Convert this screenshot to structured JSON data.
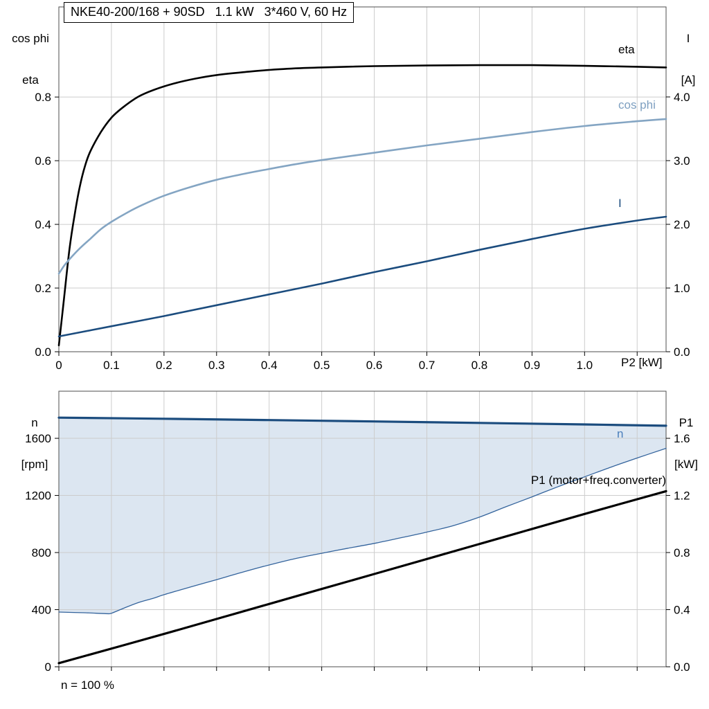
{
  "title_box": {
    "text": "NKE40-200/168 + 90SD   1.1 kW   3*460 V, 60 Hz"
  },
  "axes_text": {
    "top_left_line1": "cos phi",
    "top_left_line2": "eta",
    "top_right_line1": "I",
    "top_right_line2": "[A]",
    "x_label": "P2 [kW]",
    "bottom_left_line1": "n",
    "bottom_left_line2": "[rpm]",
    "bottom_right_line1": "P1",
    "bottom_right_line2": "[kW]"
  },
  "annotations": {
    "eta_label": "eta",
    "cos_phi_label": "cos phi",
    "current_label": "I",
    "speed_label": "n",
    "p1_label": "P1 (motor+freq.converter)",
    "footnote": "n = 100 %"
  },
  "colors": {
    "black": "#000000",
    "light_blue": "#84a5c3",
    "dark_blue": "#1b4c7e",
    "band_fill": "#dce6f1",
    "band_edge": "#33639c",
    "grid": "#cccccc",
    "frame": "#4d4d4d"
  },
  "chart_data": [
    {
      "type": "line",
      "title": "NKE40-200/168 + 90SD   1.1 kW   3*460 V, 60 Hz",
      "grid": true,
      "x_axis": {
        "label": "P2 [kW]",
        "min": 0,
        "max": 1.155,
        "ticks": [
          0,
          0.1,
          0.2,
          0.3,
          0.4,
          0.5,
          0.6,
          0.7,
          0.8,
          0.9,
          1.0,
          1.1
        ],
        "tick_labels": [
          "0",
          "0.1",
          "0.2",
          "0.3",
          "0.4",
          "0.5",
          "0.6",
          "0.7",
          "0.8",
          "0.9",
          "1.0",
          ""
        ]
      },
      "y_left": {
        "label": "cos phi / eta",
        "min": 0,
        "max": 1.083,
        "ticks": [
          0,
          0.2,
          0.4,
          0.6,
          0.8
        ],
        "tick_labels": [
          "0.0",
          "0.2",
          "0.4",
          "0.6",
          "0.8"
        ]
      },
      "y_right": {
        "label": "I [A]",
        "min": 0,
        "max": 5.413,
        "ticks": [
          0,
          1,
          2,
          3,
          4
        ],
        "tick_labels": [
          "0.0",
          "1.0",
          "2.0",
          "3.0",
          "4.0"
        ]
      },
      "series": [
        {
          "name": "eta",
          "axis": "left",
          "color": "#000000",
          "width": 2.6,
          "points": [
            [
              0,
              0.02
            ],
            [
              0.01,
              0.17
            ],
            [
              0.02,
              0.32
            ],
            [
              0.03,
              0.43
            ],
            [
              0.04,
              0.52
            ],
            [
              0.05,
              0.585
            ],
            [
              0.06,
              0.63
            ],
            [
              0.08,
              0.69
            ],
            [
              0.1,
              0.735
            ],
            [
              0.12,
              0.765
            ],
            [
              0.15,
              0.8
            ],
            [
              0.18,
              0.822
            ],
            [
              0.22,
              0.843
            ],
            [
              0.26,
              0.858
            ],
            [
              0.3,
              0.869
            ],
            [
              0.35,
              0.878
            ],
            [
              0.4,
              0.885
            ],
            [
              0.45,
              0.89
            ],
            [
              0.5,
              0.893
            ],
            [
              0.6,
              0.897
            ],
            [
              0.7,
              0.899
            ],
            [
              0.8,
              0.9
            ],
            [
              0.9,
              0.9
            ],
            [
              1.0,
              0.898
            ],
            [
              1.1,
              0.895
            ],
            [
              1.155,
              0.893
            ]
          ]
        },
        {
          "name": "cos phi",
          "axis": "left",
          "color": "#84a5c3",
          "width": 2.6,
          "points": [
            [
              0,
              0.245
            ],
            [
              0.01,
              0.27
            ],
            [
              0.02,
              0.29
            ],
            [
              0.04,
              0.325
            ],
            [
              0.06,
              0.355
            ],
            [
              0.08,
              0.385
            ],
            [
              0.1,
              0.408
            ],
            [
              0.13,
              0.437
            ],
            [
              0.16,
              0.462
            ],
            [
              0.2,
              0.49
            ],
            [
              0.25,
              0.517
            ],
            [
              0.3,
              0.54
            ],
            [
              0.35,
              0.558
            ],
            [
              0.4,
              0.574
            ],
            [
              0.45,
              0.589
            ],
            [
              0.5,
              0.602
            ],
            [
              0.6,
              0.625
            ],
            [
              0.7,
              0.648
            ],
            [
              0.8,
              0.669
            ],
            [
              0.9,
              0.69
            ],
            [
              1.0,
              0.709
            ],
            [
              1.1,
              0.724
            ],
            [
              1.155,
              0.731
            ]
          ]
        },
        {
          "name": "I",
          "axis": "right",
          "color": "#1b4c7e",
          "width": 2.6,
          "points": [
            [
              0,
              0.24
            ],
            [
              0.1,
              0.4
            ],
            [
              0.2,
              0.56
            ],
            [
              0.3,
              0.73
            ],
            [
              0.4,
              0.9
            ],
            [
              0.5,
              1.07
            ],
            [
              0.6,
              1.25
            ],
            [
              0.7,
              1.42
            ],
            [
              0.8,
              1.6
            ],
            [
              0.9,
              1.77
            ],
            [
              1.0,
              1.93
            ],
            [
              1.1,
              2.06
            ],
            [
              1.155,
              2.12
            ]
          ]
        }
      ]
    },
    {
      "type": "line",
      "title": "",
      "grid": true,
      "footnote": "n = 100 %",
      "x_axis": {
        "label": "",
        "min": 0,
        "max": 1.155,
        "ticks": [
          0,
          0.1,
          0.2,
          0.3,
          0.4,
          0.5,
          0.6,
          0.7,
          0.8,
          0.9,
          1.0,
          1.1
        ],
        "tick_labels": [
          "",
          "",
          "",
          "",
          "",
          "",
          "",
          "",
          "",
          "",
          "",
          ""
        ]
      },
      "y_left": {
        "label": "n [rpm]",
        "min": 0,
        "max": 1930,
        "ticks": [
          0,
          400,
          800,
          1200,
          1600
        ],
        "tick_labels": [
          "0",
          "400",
          "800",
          "1200",
          "1600"
        ]
      },
      "y_right": {
        "label": "P1 [kW]",
        "min": 0,
        "max": 1.93,
        "ticks": [
          0,
          0.4,
          0.8,
          1.2,
          1.6
        ],
        "tick_labels": [
          "0.0",
          "0.4",
          "0.8",
          "1.2",
          "1.6"
        ]
      },
      "band": {
        "lower_series": "n min",
        "upper_series": "n",
        "fill": "#dce6f1"
      },
      "series": [
        {
          "name": "n min",
          "axis": "left",
          "color": "#33639c",
          "width": 1.3,
          "points": [
            [
              0,
              383
            ],
            [
              0.05,
              378
            ],
            [
              0.09,
              372
            ],
            [
              0.1,
              375
            ],
            [
              0.12,
              405
            ],
            [
              0.15,
              448
            ],
            [
              0.18,
              480
            ],
            [
              0.2,
              505
            ],
            [
              0.25,
              558
            ],
            [
              0.3,
              610
            ],
            [
              0.35,
              663
            ],
            [
              0.4,
              713
            ],
            [
              0.45,
              758
            ],
            [
              0.5,
              795
            ],
            [
              0.55,
              830
            ],
            [
              0.6,
              864
            ],
            [
              0.65,
              903
            ],
            [
              0.7,
              943
            ],
            [
              0.75,
              988
            ],
            [
              0.8,
              1048
            ],
            [
              0.85,
              1120
            ],
            [
              0.9,
              1190
            ],
            [
              0.95,
              1262
            ],
            [
              1.0,
              1330
            ],
            [
              1.05,
              1398
            ],
            [
              1.1,
              1462
            ],
            [
              1.155,
              1530
            ]
          ]
        },
        {
          "name": "P1 (motor+freq.converter)",
          "axis": "right",
          "color": "#000000",
          "width": 3.2,
          "points": [
            [
              0,
              0.025
            ],
            [
              0.2,
              0.23
            ],
            [
              0.4,
              0.44
            ],
            [
              0.6,
              0.65
            ],
            [
              0.8,
              0.86
            ],
            [
              1.0,
              1.07
            ],
            [
              1.155,
              1.23
            ]
          ]
        },
        {
          "name": "n",
          "axis": "left",
          "color": "#1b4c7e",
          "width": 3.2,
          "points": [
            [
              0,
              1745
            ],
            [
              0.2,
              1737
            ],
            [
              0.4,
              1728
            ],
            [
              0.6,
              1718
            ],
            [
              0.8,
              1708
            ],
            [
              1.0,
              1697
            ],
            [
              1.155,
              1688
            ]
          ]
        }
      ]
    }
  ]
}
